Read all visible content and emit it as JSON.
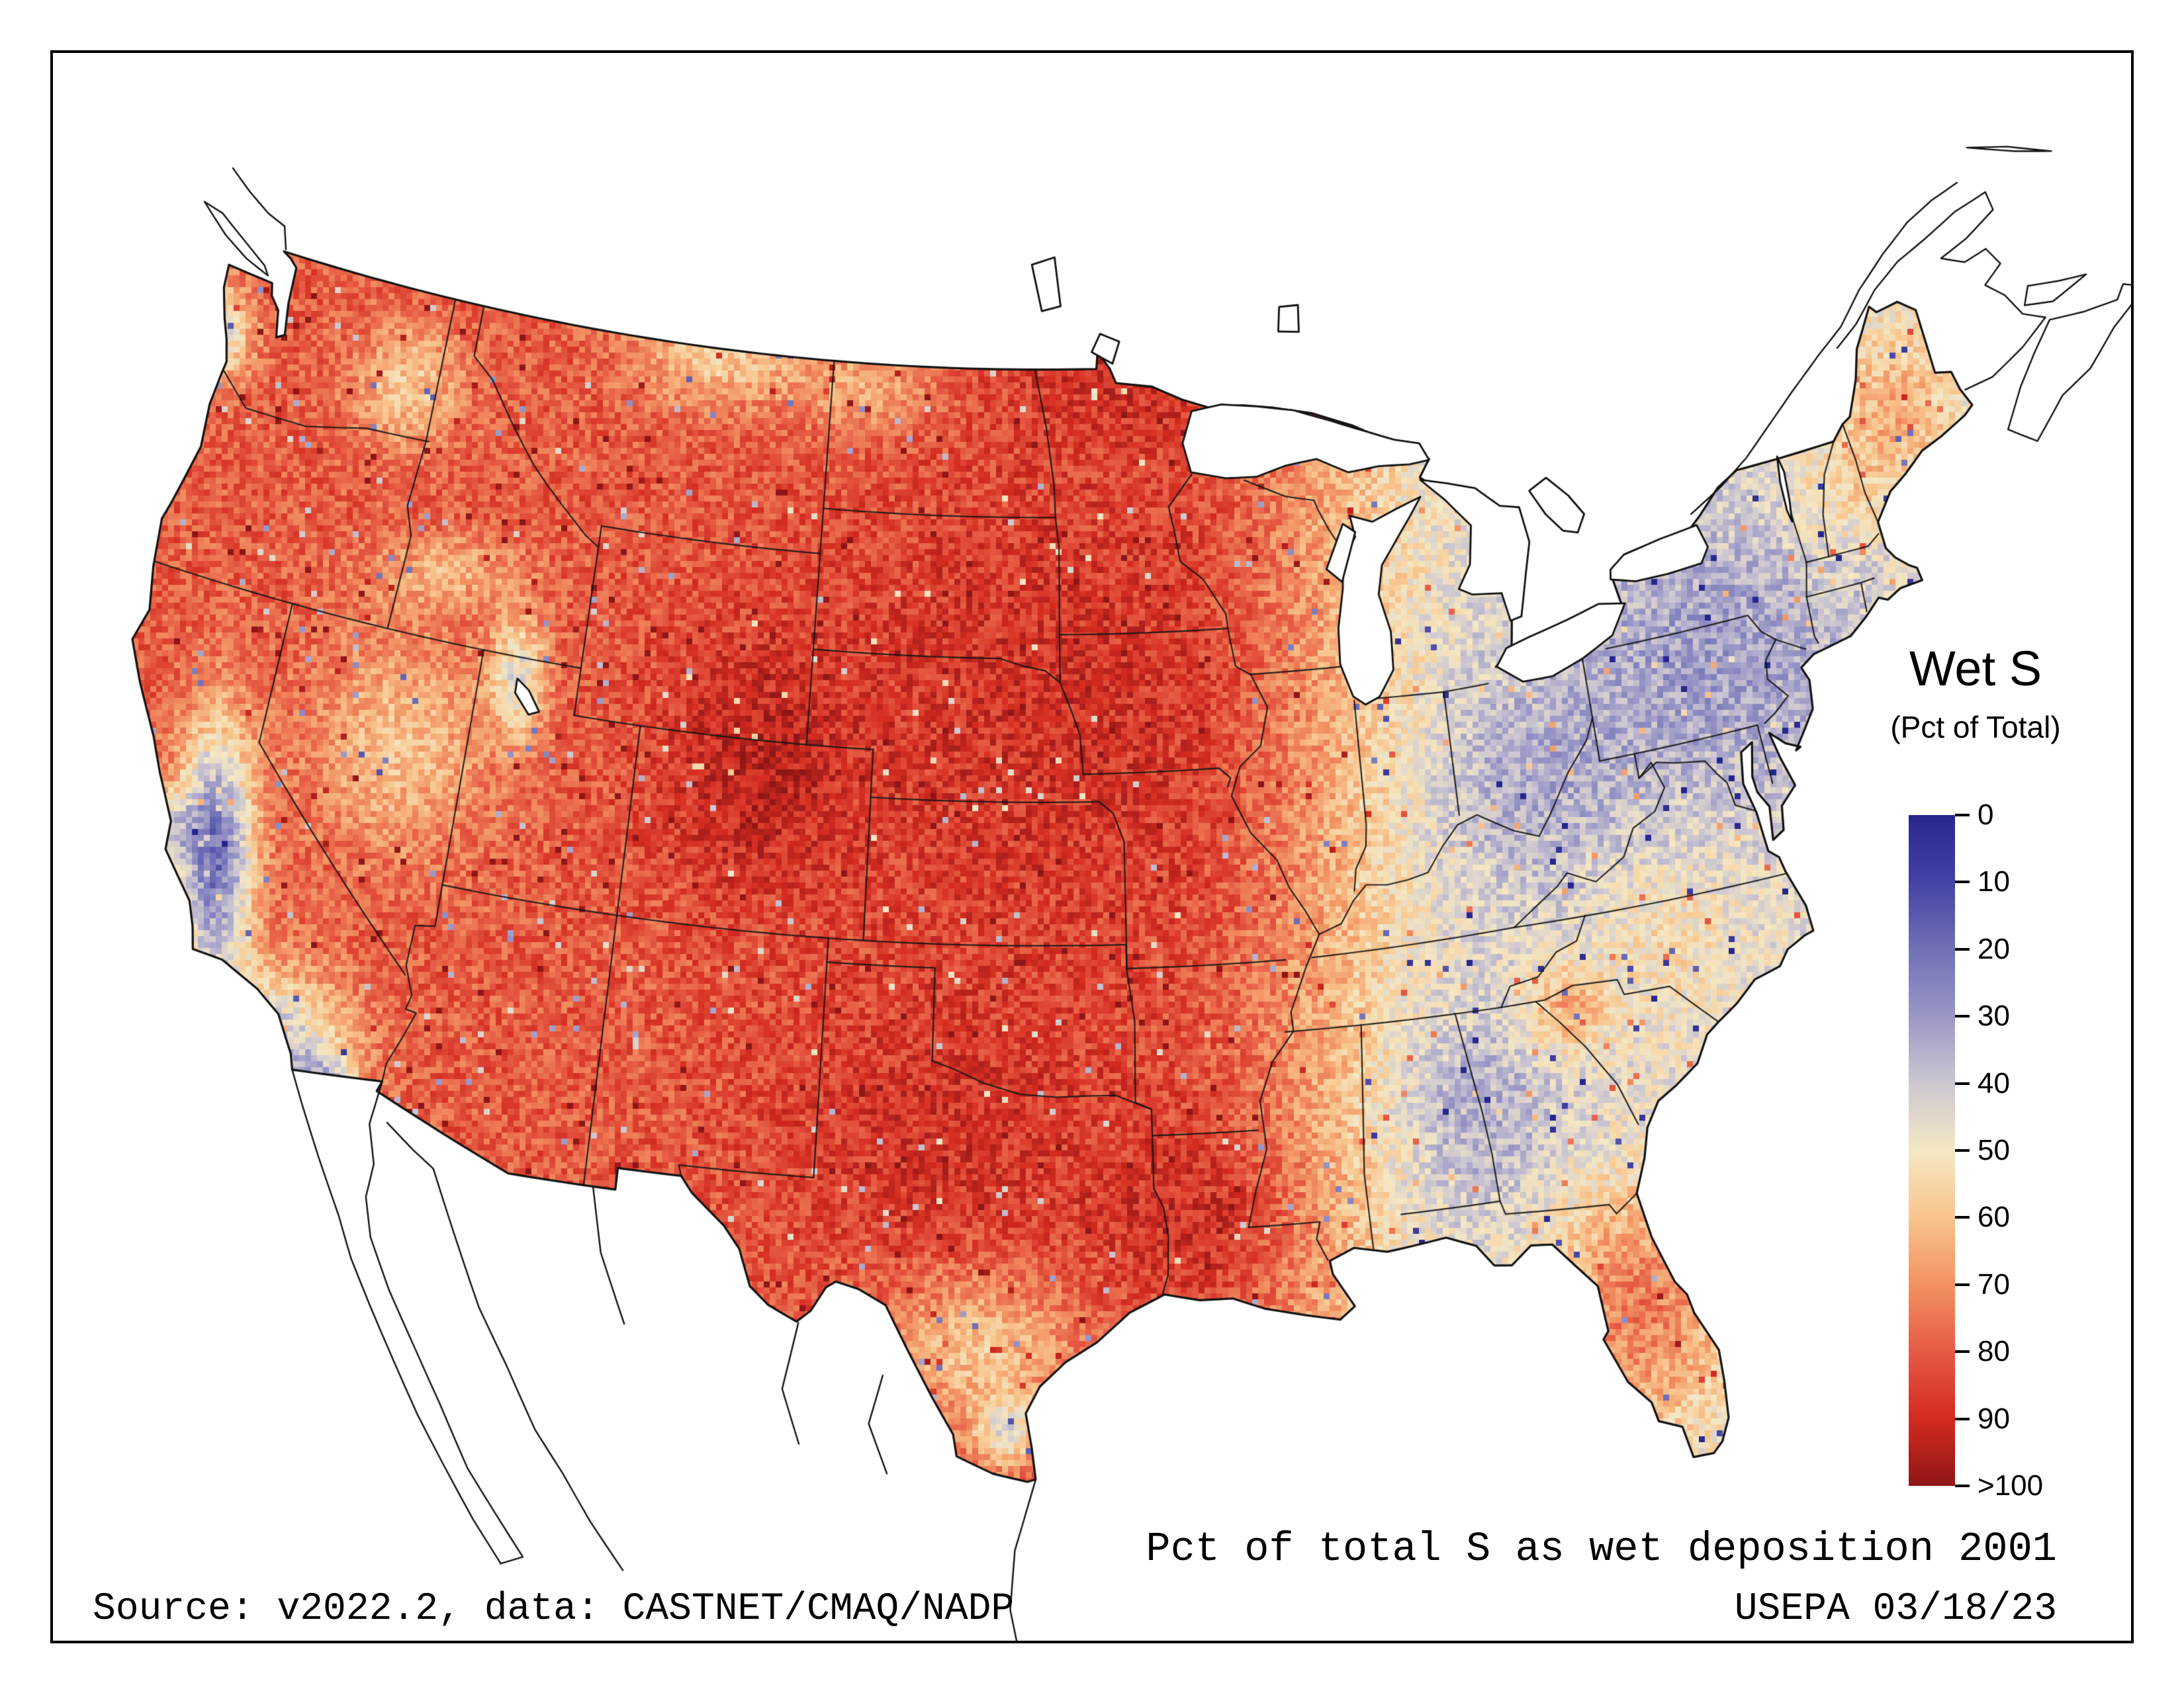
{
  "colors": {
    "background": "#ffffff",
    "frame": "#000000",
    "boundary_lines": "#111111",
    "water": "#ffffff"
  },
  "legend": {
    "title": "Wet S",
    "subtitle": "(Pct of Total)",
    "ticks": [
      "0",
      "10",
      "20",
      "30",
      "40",
      "50",
      "60",
      "70",
      "80",
      "90",
      ">100"
    ]
  },
  "caption": "Pct of total S as wet deposition 2001",
  "footer": {
    "source": "Source: v2022.2, data: CASTNET/CMAQ/NADP",
    "agency": "USEPA 03/18/23"
  },
  "chart_data": {
    "type": "heatmap",
    "title": "Wet S (Pct of Total)",
    "caption": "Pct of total S as wet deposition 2001",
    "units": "percent of total sulfur deposition occurring as wet deposition, 2001",
    "region_shown": "Conterminous United States (Canada and Mexico outlined, Great Lakes shown)",
    "legend_ticks": [
      "0",
      "10",
      "20",
      "30",
      "40",
      "50",
      "60",
      "70",
      "80",
      "90",
      ">100"
    ],
    "colormap": [
      {
        "value": 0,
        "color": "#26268e"
      },
      {
        "value": 10,
        "color": "#4343a5"
      },
      {
        "value": 20,
        "color": "#7070b6"
      },
      {
        "value": 30,
        "color": "#9a97c6"
      },
      {
        "value": 40,
        "color": "#cdc7d1"
      },
      {
        "value": 50,
        "color": "#f4e7c3"
      },
      {
        "value": 60,
        "color": "#f8c58d"
      },
      {
        "value": 70,
        "color": "#f29263"
      },
      {
        "value": 80,
        "color": "#e65a43"
      },
      {
        "value": 90,
        "color": "#d32b20"
      },
      {
        "value": 100,
        "color": "#8f1616"
      }
    ],
    "value_field": {
      "base": {
        "west_value": 80,
        "east_value": 46,
        "ramp_start": 0.56,
        "ramp_end": 0.74
      },
      "noise_amplitude": 9,
      "regions": [
        {
          "name": "sf-bay-delta",
          "u": 0.018,
          "v": 0.47,
          "rx": 0.013,
          "ry": 0.03,
          "delta": -28
        },
        {
          "name": "california-central-valley",
          "u": 0.045,
          "v": 0.49,
          "rx": 0.021,
          "ry": 0.105,
          "delta": -60
        },
        {
          "name": "southern-california",
          "u": 0.075,
          "v": 0.645,
          "rx": 0.042,
          "ry": 0.06,
          "delta": -42
        },
        {
          "name": "imperial-valley",
          "u": 0.105,
          "v": 0.68,
          "rx": 0.015,
          "ry": 0.028,
          "delta": -30
        },
        {
          "name": "puget-sound-lowland",
          "u": 0.045,
          "v": 0.065,
          "rx": 0.02,
          "ry": 0.04,
          "delta": -36
        },
        {
          "name": "western-nevada",
          "u": 0.145,
          "v": 0.4,
          "rx": 0.05,
          "ry": 0.09,
          "delta": -20
        },
        {
          "name": "snake-river-plain",
          "u": 0.17,
          "v": 0.26,
          "rx": 0.04,
          "ry": 0.03,
          "delta": -16
        },
        {
          "name": "idaho-panhandle",
          "u": 0.15,
          "v": 0.11,
          "rx": 0.03,
          "ry": 0.05,
          "delta": -22
        },
        {
          "name": "wasatch-great-salt-lake",
          "u": 0.21,
          "v": 0.345,
          "rx": 0.015,
          "ry": 0.05,
          "delta": -32
        },
        {
          "name": "colorado-rockies",
          "u": 0.335,
          "v": 0.42,
          "rx": 0.05,
          "ry": 0.1,
          "delta": 12
        },
        {
          "name": "north-central-montana",
          "u": 0.32,
          "v": 0.08,
          "rx": 0.045,
          "ry": 0.045,
          "delta": -24
        },
        {
          "name": "western-dakotas",
          "u": 0.4,
          "v": 0.11,
          "rx": 0.04,
          "ry": 0.04,
          "delta": -15
        },
        {
          "name": "central-great-plains",
          "u": 0.5,
          "v": 0.37,
          "rx": 0.14,
          "ry": 0.22,
          "delta": 9
        },
        {
          "name": "northern-minnesota",
          "u": 0.555,
          "v": 0.08,
          "rx": 0.085,
          "ry": 0.07,
          "delta": 9
        },
        {
          "name": "upper-michigan",
          "u": 0.63,
          "v": 0.12,
          "rx": 0.04,
          "ry": 0.04,
          "delta": 8
        },
        {
          "name": "central-texas",
          "u": 0.44,
          "v": 0.72,
          "rx": 0.1,
          "ry": 0.12,
          "delta": 8
        },
        {
          "name": "south-texas-brush",
          "u": 0.46,
          "v": 0.89,
          "rx": 0.05,
          "ry": 0.06,
          "delta": -22
        },
        {
          "name": "rio-grande-valley-tip",
          "u": 0.475,
          "v": 0.96,
          "rx": 0.018,
          "ry": 0.028,
          "delta": -30
        },
        {
          "name": "louisiana-gulf-coast",
          "u": 0.59,
          "v": 0.79,
          "rx": 0.06,
          "ry": 0.08,
          "delta": 10
        },
        {
          "name": "ohio-valley",
          "u": 0.76,
          "v": 0.44,
          "rx": 0.06,
          "ry": 0.09,
          "delta": -10
        },
        {
          "name": "northeast-appalachians",
          "u": 0.86,
          "v": 0.33,
          "rx": 0.09,
          "ry": 0.115,
          "delta": -15
        },
        {
          "name": "maine",
          "u": 0.96,
          "v": 0.13,
          "rx": 0.035,
          "ry": 0.075,
          "delta": 18
        },
        {
          "name": "vermont-new-hampshire",
          "u": 0.925,
          "v": 0.2,
          "rx": 0.028,
          "ry": 0.05,
          "delta": 8
        },
        {
          "name": "alabama-georgia",
          "u": 0.73,
          "v": 0.7,
          "rx": 0.05,
          "ry": 0.08,
          "delta": -11
        },
        {
          "name": "central-georgia-hotspot",
          "u": 0.78,
          "v": 0.615,
          "rx": 0.022,
          "ry": 0.035,
          "delta": 20
        },
        {
          "name": "florida-peninsula",
          "u": 0.82,
          "v": 0.86,
          "rx": 0.05,
          "ry": 0.1,
          "delta": 28
        },
        {
          "name": "coastal-carolinas",
          "u": 0.835,
          "v": 0.56,
          "rx": 0.04,
          "ry": 0.07,
          "delta": 8
        }
      ]
    },
    "observations": [
      {
        "region": "Western US, Rockies, Great Plains",
        "approx_value": "70-95"
      },
      {
        "region": "California Central Valley / southern California",
        "approx_value": "10-30"
      },
      {
        "region": "Northeast (PA / NY / Ohio Valley)",
        "approx_value": "25-40"
      },
      {
        "region": "Southeast interior",
        "approx_value": "40-60"
      },
      {
        "region": "Florida and Gulf Coast",
        "approx_value": "70-90"
      }
    ]
  }
}
